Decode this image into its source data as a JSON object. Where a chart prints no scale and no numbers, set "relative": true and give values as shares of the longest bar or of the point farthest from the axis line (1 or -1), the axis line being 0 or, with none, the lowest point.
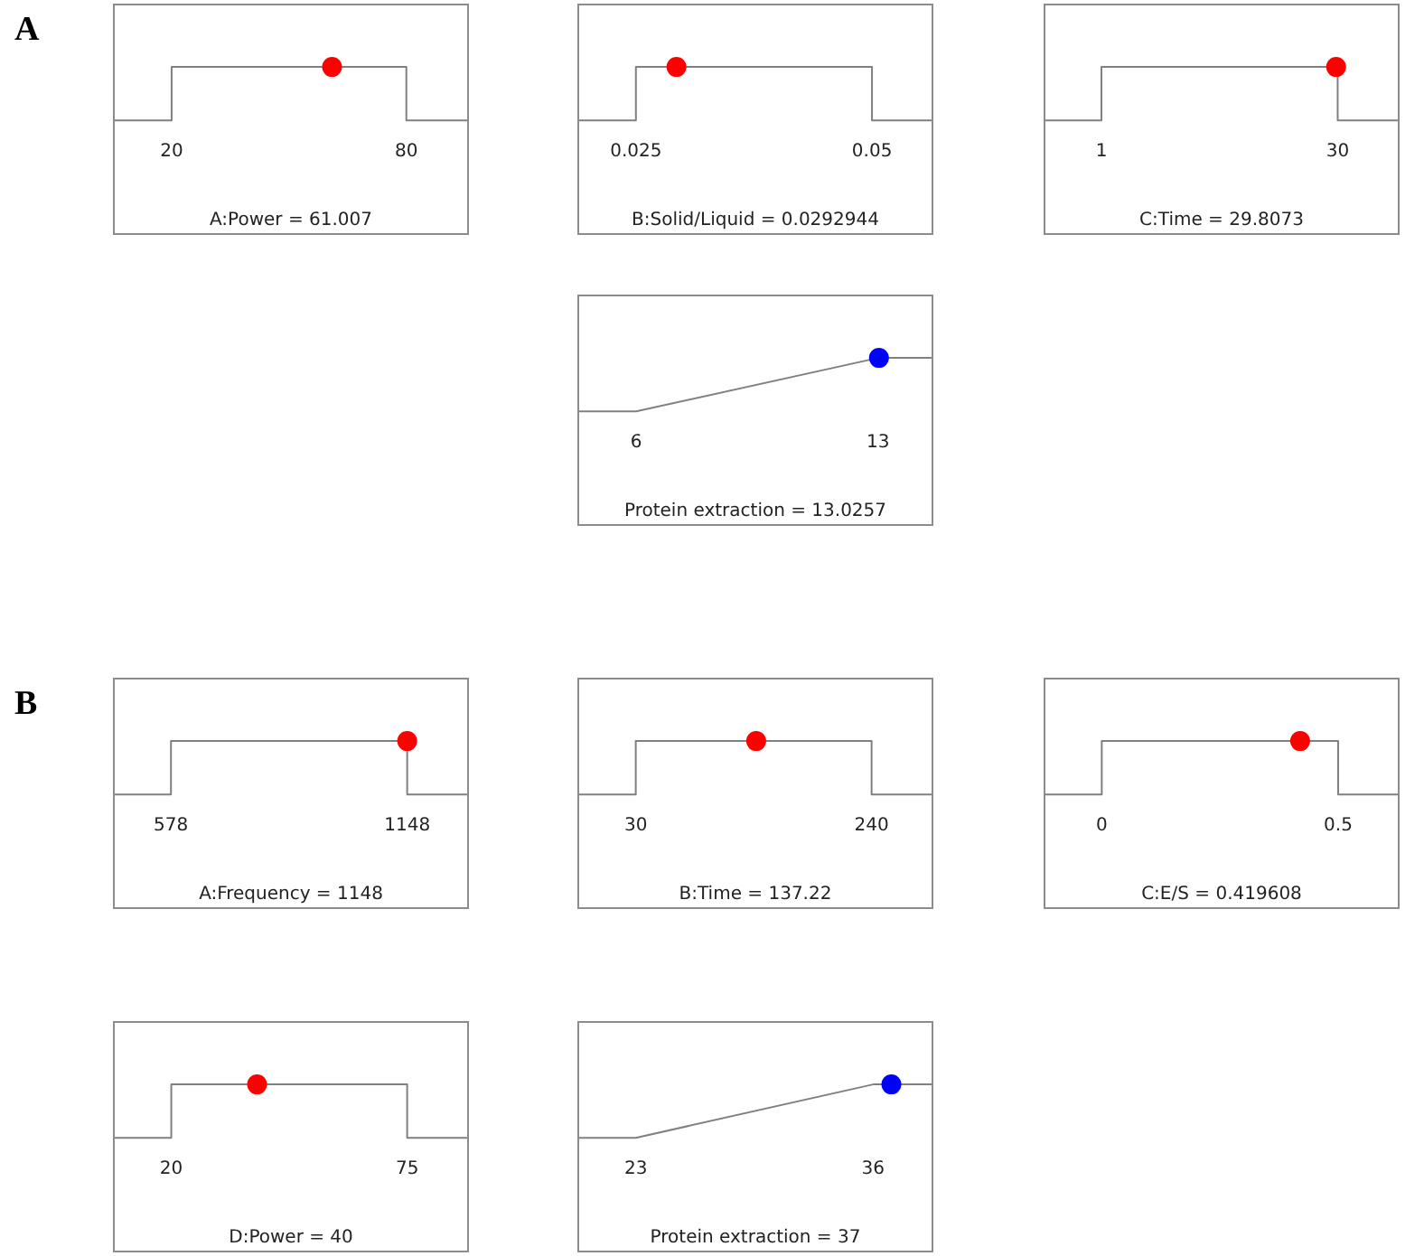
{
  "chart_data": [
    {
      "type": "line",
      "relative": true,
      "xlabel": "A:Power = 61.007",
      "annotations": [
        "A"
      ],
      "xlim": [
        5,
        96
      ],
      "xticks": [
        20,
        80
      ],
      "series": [
        {
          "type": "line",
          "color": "#808080",
          "marker": "none",
          "x": [
            5,
            20,
            20,
            80,
            80,
            96
          ],
          "values": [
            0,
            0,
            1,
            1,
            0,
            0
          ]
        },
        {
          "type": "scatter",
          "color": "#ff0000",
          "marker": "circle",
          "x": [
            61.007
          ],
          "values": [
            1
          ]
        }
      ]
    },
    {
      "type": "line",
      "relative": true,
      "xlabel": "B:Solid/Liquid = 0.0292944",
      "xlim": [
        0.0188,
        0.0565
      ],
      "xticks": [
        0.025,
        0.05
      ],
      "series": [
        {
          "type": "line",
          "color": "#808080",
          "marker": "none",
          "x": [
            0.0188,
            0.025,
            0.025,
            0.05,
            0.05,
            0.0565
          ],
          "values": [
            0,
            0,
            1,
            1,
            0,
            0
          ]
        },
        {
          "type": "scatter",
          "color": "#ff0000",
          "marker": "circle",
          "x": [
            0.0292944
          ],
          "values": [
            1
          ]
        }
      ]
    },
    {
      "type": "line",
      "relative": true,
      "xlabel": "C:Time = 29.8073",
      "xlim": [
        -6.1,
        37.6
      ],
      "xticks": [
        1,
        30
      ],
      "series": [
        {
          "type": "line",
          "color": "#808080",
          "marker": "none",
          "x": [
            -6.1,
            1,
            1,
            30,
            30,
            37.6
          ],
          "values": [
            0,
            0,
            1,
            1,
            0,
            0
          ]
        },
        {
          "type": "scatter",
          "color": "#ff0000",
          "marker": "circle",
          "x": [
            29.8073
          ],
          "values": [
            1
          ]
        }
      ]
    },
    {
      "type": "line",
      "relative": true,
      "xlabel": "Protein extraction = 13.0257",
      "xlim": [
        4.3,
        14.6
      ],
      "xticks": [
        6,
        13
      ],
      "series": [
        {
          "type": "line",
          "color": "#808080",
          "marker": "none",
          "x": [
            4.3,
            6,
            13,
            14.6
          ],
          "values": [
            0,
            0,
            1,
            1
          ]
        },
        {
          "type": "scatter",
          "color": "#0000ff",
          "marker": "circle",
          "x": [
            13.0257
          ],
          "values": [
            1
          ]
        }
      ]
    },
    {
      "type": "line",
      "relative": true,
      "xlabel": "A:Frequency = 1148",
      "annotations": [
        "B"
      ],
      "xlim": [
        438,
        1297
      ],
      "xticks": [
        578,
        1148
      ],
      "series": [
        {
          "type": "line",
          "color": "#808080",
          "marker": "none",
          "x": [
            438,
            578,
            578,
            1148,
            1148,
            1297
          ],
          "values": [
            0,
            0,
            1,
            1,
            0,
            0
          ]
        },
        {
          "type": "scatter",
          "color": "#ff0000",
          "marker": "circle",
          "x": [
            1148
          ],
          "values": [
            1
          ]
        }
      ]
    },
    {
      "type": "line",
      "relative": true,
      "xlabel": "B:Time = 137.22",
      "xlim": [
        -22,
        295
      ],
      "xticks": [
        30,
        240
      ],
      "series": [
        {
          "type": "line",
          "color": "#808080",
          "marker": "none",
          "x": [
            -22,
            30,
            30,
            240,
            240,
            295
          ],
          "values": [
            0,
            0,
            1,
            1,
            0,
            0
          ]
        },
        {
          "type": "scatter",
          "color": "#ff0000",
          "marker": "circle",
          "x": [
            137.22
          ],
          "values": [
            1
          ]
        }
      ]
    },
    {
      "type": "line",
      "relative": true,
      "xlabel": "C:E/S = 0.419608",
      "xlim": [
        -0.123,
        0.63
      ],
      "xticks": [
        0,
        0.5
      ],
      "series": [
        {
          "type": "line",
          "color": "#808080",
          "marker": "none",
          "x": [
            -0.123,
            0,
            0,
            0.5,
            0.5,
            0.63
          ],
          "values": [
            0,
            0,
            1,
            1,
            0,
            0
          ]
        },
        {
          "type": "scatter",
          "color": "#ff0000",
          "marker": "circle",
          "x": [
            0.419608
          ],
          "values": [
            1
          ]
        }
      ]
    },
    {
      "type": "line",
      "relative": true,
      "xlabel": "D:Power = 40",
      "xlim": [
        6.4,
        89.4
      ],
      "xticks": [
        20,
        75
      ],
      "series": [
        {
          "type": "line",
          "color": "#808080",
          "marker": "none",
          "x": [
            6.4,
            20,
            20,
            75,
            75,
            89.4
          ],
          "values": [
            0,
            0,
            1,
            1,
            0,
            0
          ]
        },
        {
          "type": "scatter",
          "color": "#ff0000",
          "marker": "circle",
          "x": [
            40
          ],
          "values": [
            1
          ]
        }
      ]
    },
    {
      "type": "line",
      "relative": true,
      "xlabel": "Protein extraction = 37",
      "xlim": [
        19.8,
        39.3
      ],
      "xticks": [
        23,
        36
      ],
      "series": [
        {
          "type": "line",
          "color": "#808080",
          "marker": "none",
          "x": [
            19.8,
            23,
            36,
            39.3
          ],
          "values": [
            0,
            0,
            1,
            1
          ]
        },
        {
          "type": "scatter",
          "color": "#0000ff",
          "marker": "circle",
          "x": [
            37
          ],
          "values": [
            1
          ]
        }
      ]
    }
  ]
}
